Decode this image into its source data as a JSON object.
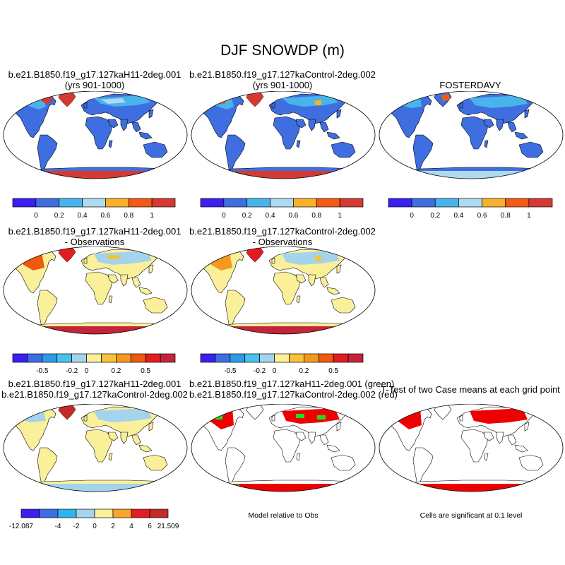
{
  "title": "DJF SNOWDP (m)",
  "panels": {
    "p1": {
      "line1": "b.e21.B1850.f19_g17.127kaH11-2deg.001",
      "line2": "(yrs 901-1000)"
    },
    "p2": {
      "line1": "b.e21.B1850.f19_g17.127kaControl-2deg.002",
      "line2": "(yrs 901-1000)"
    },
    "p3": {
      "line1": "FOSTERDAVY"
    },
    "p4": {
      "line1": "b.e21.B1850.f19_g17.127kaH11-2deg.001",
      "line2": "- Observations"
    },
    "p5": {
      "line1": "b.e21.B1850.f19_g17.127kaControl-2deg.002",
      "line2": "- Observations"
    },
    "p7": {
      "line1": "b.e21.B1850.f19_g17.127kaH11-2deg.001",
      "line2": "b.e21.B1850.f19_g17.127kaControl-2deg.002"
    },
    "p8": {
      "line1": "b.e21.B1850.f19_g17.127kaH11-2deg.001 (green)",
      "line2": "b.e21.B1850.f19_g17.127kaControl-2deg.002 (red)",
      "caption": "Model relative to Obs"
    },
    "p9": {
      "line1": "T-Test of two Case means at each grid point",
      "caption": "Cells are significant at 0.1 level"
    }
  },
  "colorbars": {
    "row1": {
      "colors": [
        "#3a1ff0",
        "#3f6ee0",
        "#49b4ec",
        "#aedaf0",
        "#f7b12b",
        "#f35a15",
        "#d43a33"
      ],
      "labels": [
        "0",
        "0.2",
        "0.4",
        "0.6",
        "0.8",
        "1"
      ]
    },
    "row2": {
      "colors": [
        "#3a1ff0",
        "#3f6ee0",
        "#2d9be6",
        "#49c1ef",
        "#a4d4ec",
        "#fbf09a",
        "#f7c23a",
        "#f39a1e",
        "#f05a10",
        "#e31c22",
        "#c4243b"
      ],
      "labels": [
        "-0.5",
        "-0.2",
        "0",
        "0.2",
        "0.5"
      ]
    },
    "row3": {
      "colors": [
        "#3a1ff0",
        "#3f6ee0",
        "#2db5ec",
        "#a4d4ec",
        "#fbf09a",
        "#f7a52b",
        "#e31c22",
        "#c42a28"
      ],
      "labels": [
        "-12.087",
        "-4",
        "-2",
        "0",
        "2",
        "4",
        "6",
        "21.509"
      ]
    }
  },
  "colors": {
    "ocean": "#ffffff",
    "land_outline": "#000000",
    "snow_base": "#3e6ee0",
    "diff_base": "#fbf09a",
    "significant": "#ee0000",
    "model_green": "#22dd22",
    "model_red": "#ee0000"
  }
}
